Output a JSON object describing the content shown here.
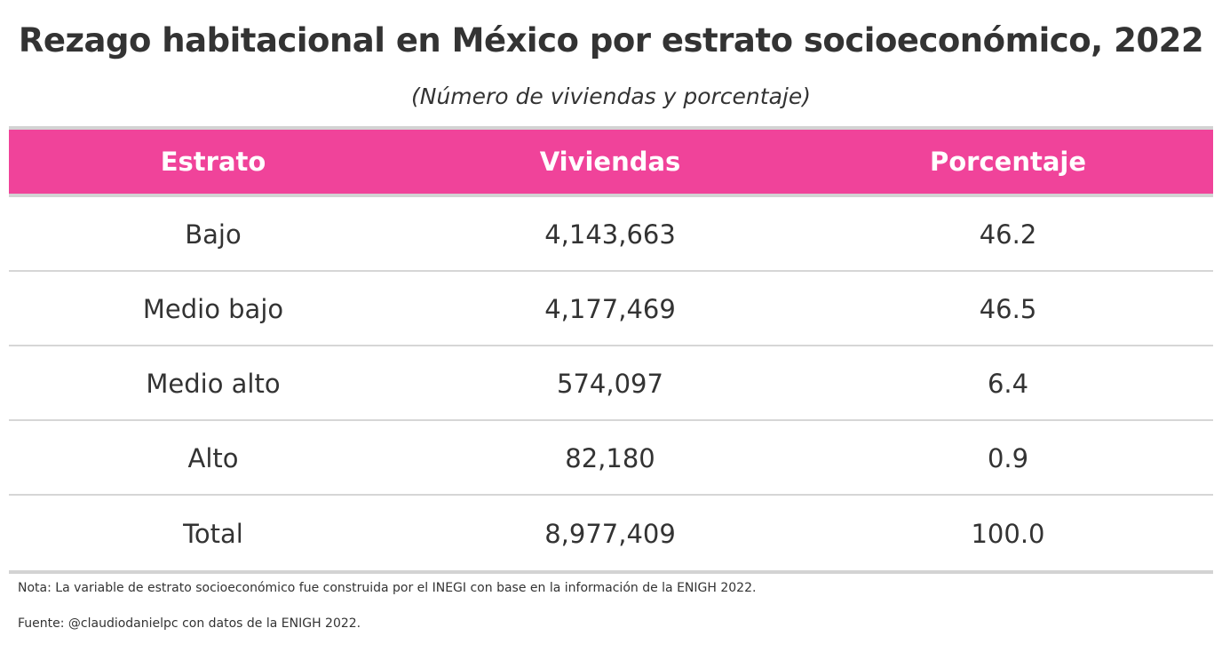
{
  "title": "Rezago habitacional en México por estrato socioeconómico, 2022",
  "subtitle": "(Número de viviendas y porcentaje)",
  "colors": {
    "header_bg": "#f0439a",
    "header_text": "#ffffff",
    "body_text": "#333333",
    "rule": "#d3d3d3"
  },
  "table": {
    "headers": [
      "Estrato",
      "Viviendas",
      "Porcentaje"
    ],
    "rows": [
      [
        "Bajo",
        "4,143,663",
        "46.2"
      ],
      [
        "Medio bajo",
        "4,177,469",
        "46.5"
      ],
      [
        "Medio alto",
        "574,097",
        "6.4"
      ],
      [
        "Alto",
        "82,180",
        "0.9"
      ],
      [
        "Total",
        "8,977,409",
        "100.0"
      ]
    ]
  },
  "note": "Nota: La variable de estrato socioeconómico fue construida por el INEGI con base en la información de la ENIGH 2022.",
  "source": "Fuente: @claudiodanielpc con datos de la ENIGH 2022."
}
